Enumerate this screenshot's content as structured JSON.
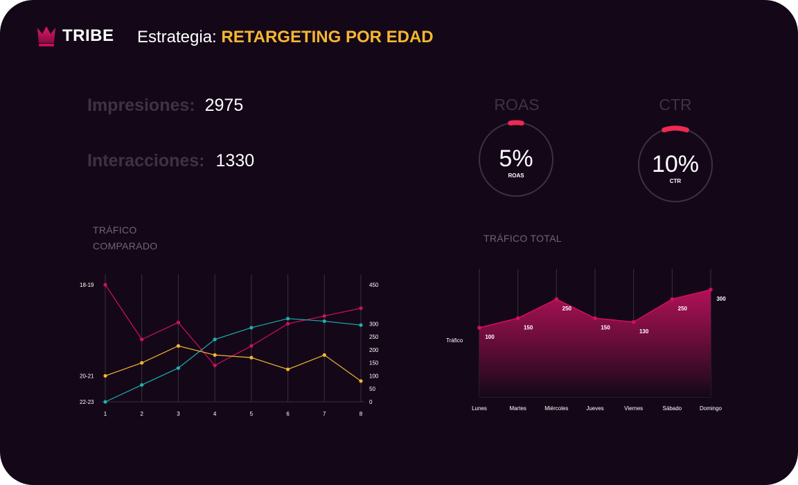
{
  "brand": {
    "name": "TRIBE"
  },
  "header": {
    "prefix": "Estrategia:",
    "highlight": "RETARGETING POR EDAD"
  },
  "metrics": {
    "impresiones": {
      "label": "Impresiones:",
      "value": "2975"
    },
    "interacciones": {
      "label": "Interacciones:",
      "value": "1330"
    }
  },
  "gauges": [
    {
      "title": "ROAS",
      "value": "5%",
      "sublabel": "ROAS",
      "fraction": 0.05
    },
    {
      "title": "CTR",
      "value": "10%",
      "sublabel": "CTR",
      "fraction": 0.1
    }
  ],
  "colors": {
    "background": "#140818",
    "accent_yellow": "#f5b731",
    "gauge_arc": "#ee2a53",
    "magenta": "#d10f62",
    "teal": "#1fb0b1",
    "yellow": "#f2b632"
  },
  "chart_data": [
    {
      "type": "line",
      "title": "TRÁFICO COMPARADO",
      "title_lines": [
        "TRÁFICO",
        "COMPARADO"
      ],
      "x": [
        1,
        2,
        3,
        4,
        5,
        6,
        7,
        8
      ],
      "series": [
        {
          "color": "#d10f62",
          "values": [
            450,
            240,
            305,
            140,
            215,
            300,
            330,
            360
          ]
        },
        {
          "color": "#1fb0b1",
          "values": [
            0,
            65,
            130,
            240,
            285,
            320,
            310,
            295
          ]
        },
        {
          "color": "#f2b632",
          "values": [
            100,
            150,
            215,
            180,
            170,
            125,
            180,
            80
          ]
        }
      ],
      "left_labels": [
        {
          "text": "18-19",
          "value": 450
        },
        {
          "text": "20-21",
          "value": 100
        },
        {
          "text": "22-23",
          "value": 0
        }
      ],
      "right_ticks": [
        0,
        50,
        100,
        150,
        200,
        250,
        300,
        450
      ],
      "ylim": [
        0,
        450
      ],
      "grid": "vertical"
    },
    {
      "type": "area",
      "title": "TRÁFICO TOTAL",
      "categories": [
        "Lunes",
        "Martes",
        "Miércoles",
        "Jueves",
        "Viernes",
        "Sábado",
        "Domingo"
      ],
      "values": [
        100,
        150,
        250,
        150,
        130,
        250,
        300
      ],
      "value_labels": [
        "100",
        "150",
        "250",
        "150",
        "130",
        "250",
        "300"
      ],
      "ylabel": "Tráfico",
      "grid": "vertical"
    }
  ]
}
